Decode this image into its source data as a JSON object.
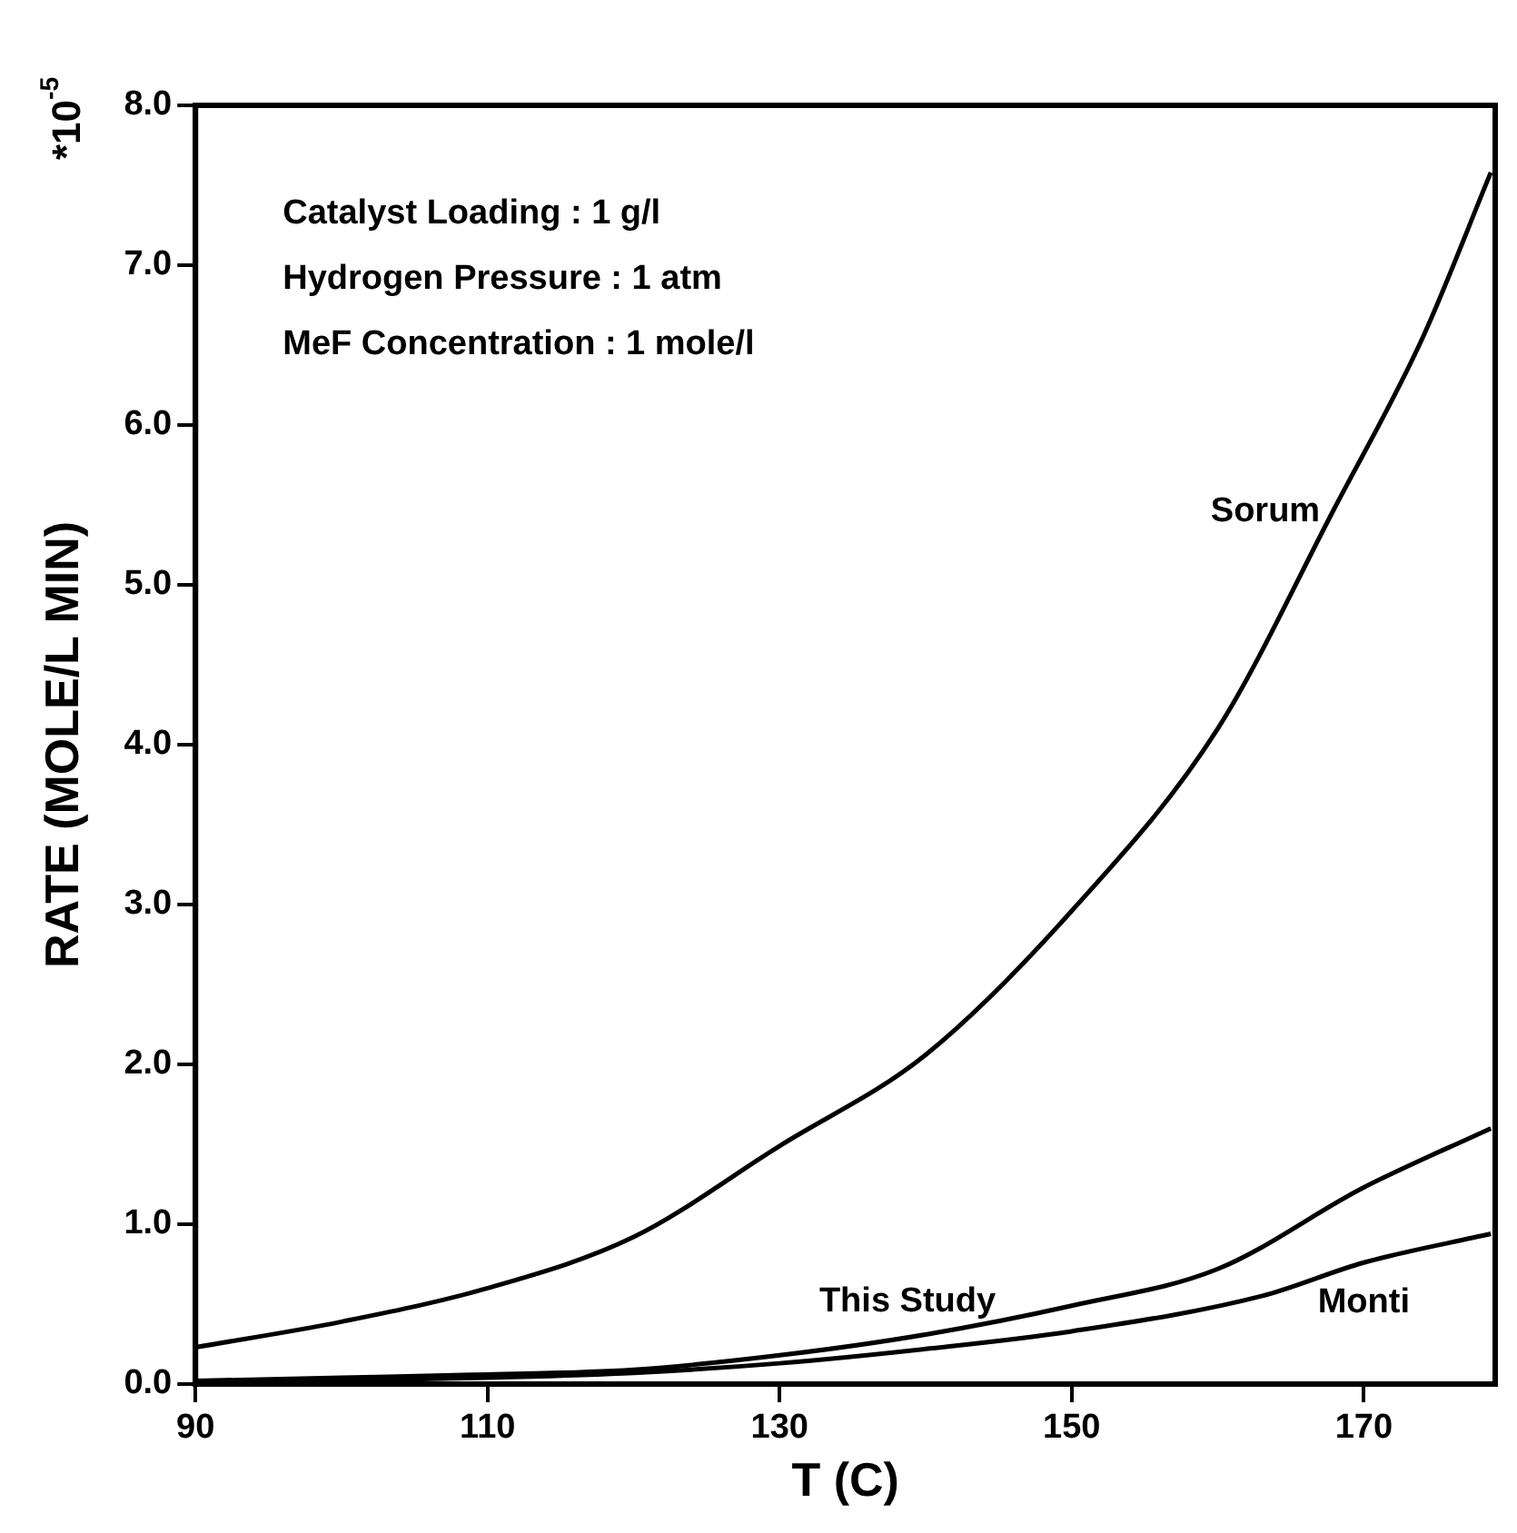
{
  "chart_data": {
    "type": "line",
    "xlabel": "T (C)",
    "ylabel": "RATE (MOLE/L MIN)",
    "annotations": [
      "Catalyst Loading : 1 g/l",
      "Hydrogen Pressure : 1 atm",
      "MeF Concentration : 1 mole/l",
      "*10$^{-5}$"
    ],
    "xlim": [
      90,
      179
    ],
    "xticks": [
      90,
      110,
      130,
      150,
      170
    ],
    "ylim": [
      0,
      8
    ],
    "yticks": [
      {
        "value": 0,
        "label": "0.0"
      },
      {
        "value": 1,
        "label": "1.0"
      },
      {
        "value": 2,
        "label": "2.0"
      },
      {
        "value": 3,
        "label": "3.0"
      },
      {
        "value": 4,
        "label": "4.0"
      },
      {
        "value": 5,
        "label": "5.0"
      },
      {
        "value": 6,
        "label": "6.0"
      },
      {
        "value": 7,
        "label": "7.0"
      },
      {
        "value": 8,
        "label": "8.0"
      }
    ],
    "grid": false,
    "legend": false,
    "marker": "none",
    "line_style": "solid",
    "series": [
      {
        "name": "Sorum",
        "color": "#000000",
        "x": [
          90,
          100,
          110,
          120,
          130,
          140,
          150,
          160,
          168,
          174,
          178.7
        ],
        "values": [
          0.23,
          0.39,
          0.6,
          0.92,
          1.49,
          2.06,
          2.96,
          4.1,
          5.48,
          6.54,
          7.58
        ]
      },
      {
        "name": "This Study",
        "color": "#000000",
        "x": [
          90,
          100,
          110,
          120,
          130,
          140,
          150,
          160,
          170,
          178.7
        ],
        "values": [
          0.02,
          0.04,
          0.06,
          0.09,
          0.18,
          0.31,
          0.49,
          0.72,
          1.23,
          1.6
        ]
      },
      {
        "name": "Monti",
        "color": "#000000",
        "x": [
          90,
          100,
          110,
          120,
          130,
          140,
          150,
          163,
          170,
          178.7
        ],
        "values": [
          0.01,
          0.02,
          0.04,
          0.07,
          0.13,
          0.22,
          0.33,
          0.55,
          0.76,
          0.94
        ]
      }
    ]
  }
}
